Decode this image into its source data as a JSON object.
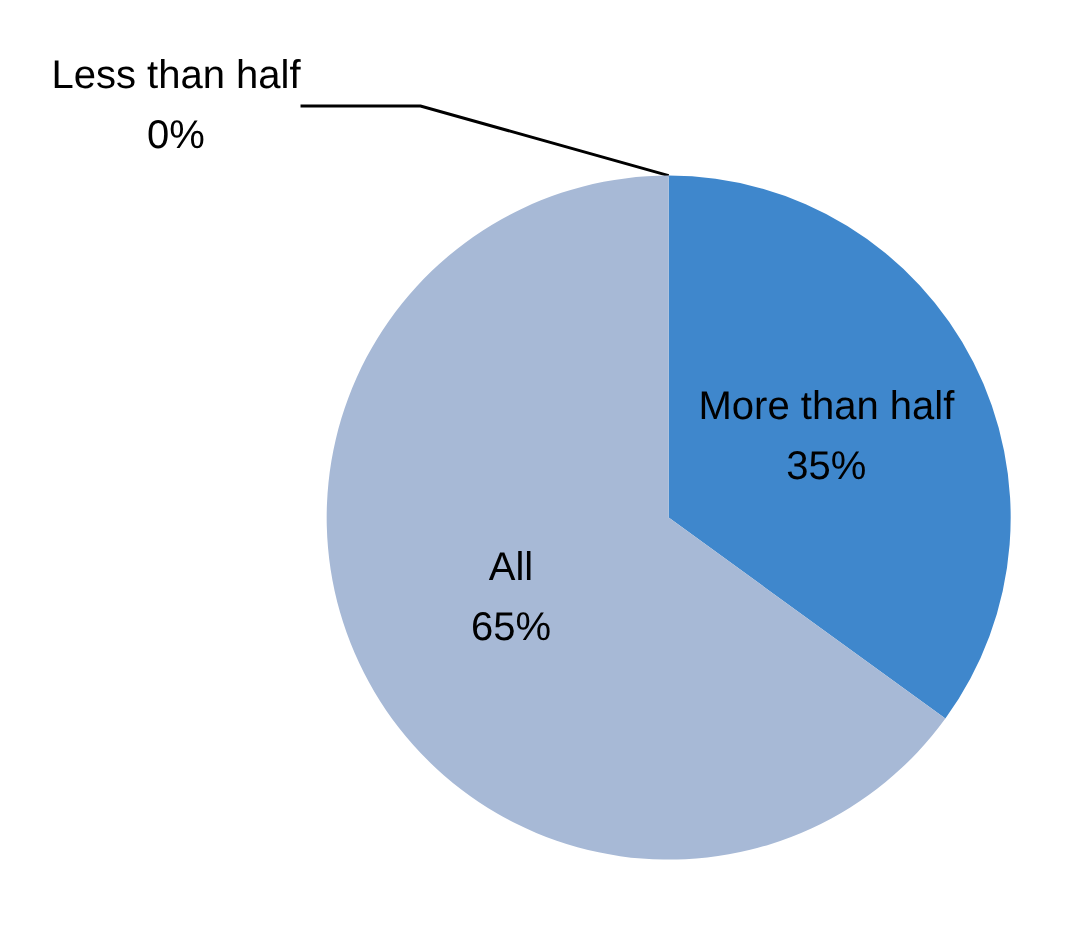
{
  "chart_data": {
    "type": "pie",
    "categories": [
      "Less than half",
      "More than half",
      "All"
    ],
    "values": [
      0,
      35,
      65
    ],
    "value_labels": [
      "0%",
      "35%",
      "65%"
    ],
    "colors": [
      "#c0504d",
      "#3f87cc",
      "#a7b9d6"
    ],
    "legend": false
  }
}
